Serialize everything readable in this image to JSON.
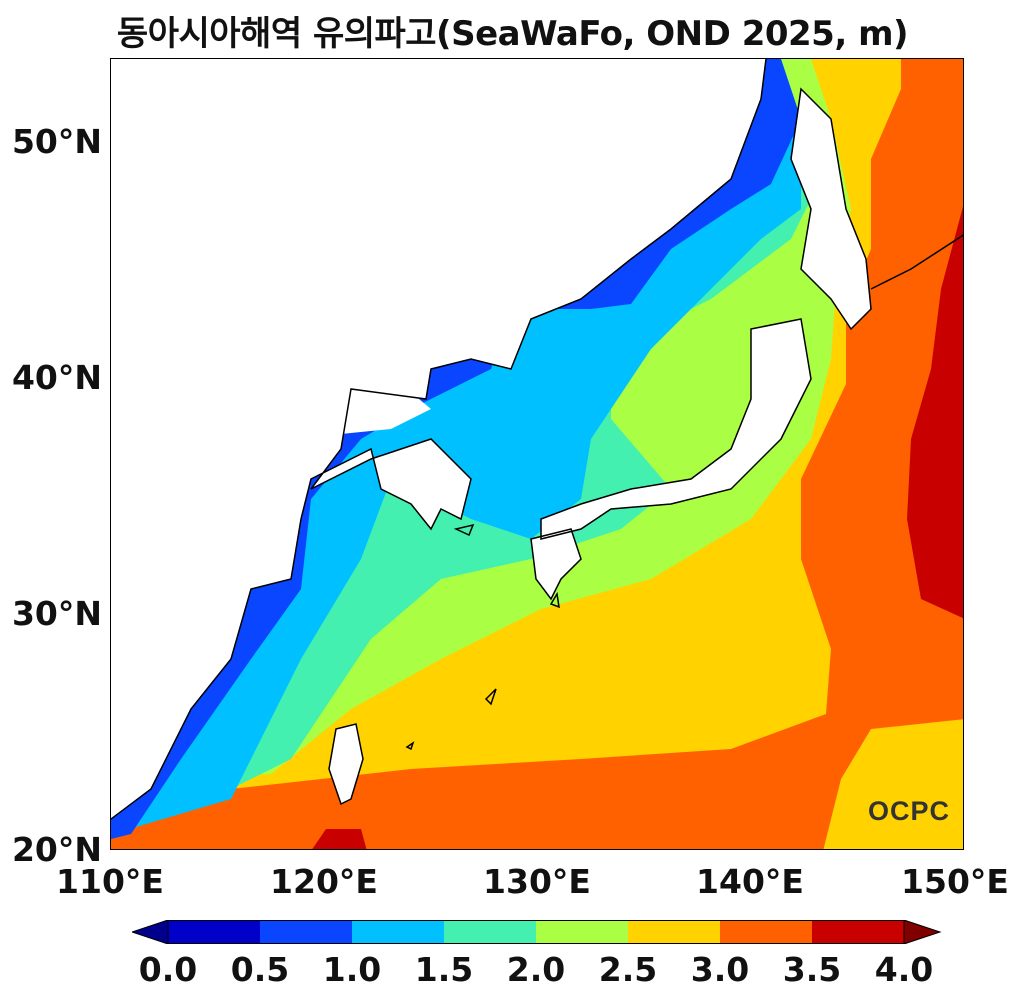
{
  "title": "동아시아해역 유의파고(SeaWaFo, OND 2025, m)",
  "map": {
    "lat_labels": [
      "50°N",
      "40°N",
      "30°N",
      "20°N"
    ],
    "lon_labels": [
      "110°E",
      "120°E",
      "130°E",
      "140°E",
      "150°E"
    ],
    "lat_range": [
      20,
      53.5
    ],
    "lon_range": [
      110,
      150
    ]
  },
  "logo": "OCPC",
  "colorbar": {
    "ticks": [
      "0.0",
      "0.5",
      "1.0",
      "1.5",
      "2.0",
      "2.5",
      "3.0",
      "3.5",
      "4.0"
    ],
    "colors": [
      "#0000c8",
      "#0a46ff",
      "#00c0ff",
      "#44f0b0",
      "#aaff44",
      "#ffd200",
      "#ff6000",
      "#c80000"
    ],
    "under_color": "#00008c",
    "over_color": "#800000"
  }
}
